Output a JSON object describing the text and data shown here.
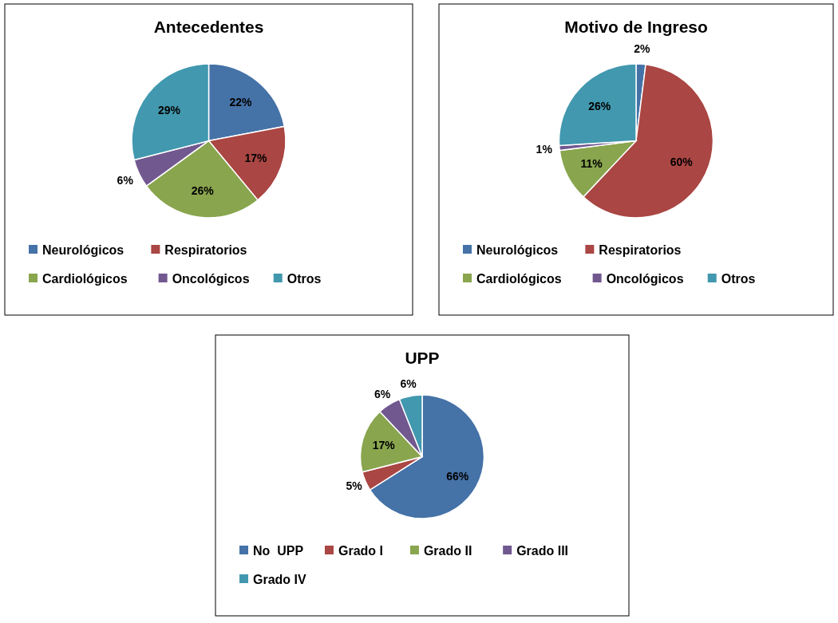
{
  "chart_data": [
    {
      "type": "pie",
      "title": "Antecedentes",
      "categories": [
        "Neurológicos",
        "Respiratorios",
        "Cardiológicos",
        "Oncológicos",
        "Otros"
      ],
      "values": [
        22,
        17,
        26,
        6,
        29
      ],
      "colors": [
        "#4572a7",
        "#aa4643",
        "#89a54e",
        "#71588f",
        "#4198af"
      ],
      "value_labels": [
        "22%",
        "17%",
        "26%",
        "6%",
        "29%"
      ],
      "legend": "bottom"
    },
    {
      "type": "pie",
      "title": "Motivo de Ingreso",
      "categories": [
        "Neurológicos",
        "Respiratorios",
        "Cardiológicos",
        "Oncológicos",
        "Otros"
      ],
      "values": [
        2,
        60,
        11,
        1,
        26
      ],
      "colors": [
        "#4572a7",
        "#aa4643",
        "#89a54e",
        "#71588f",
        "#4198af"
      ],
      "value_labels": [
        "2%",
        "60%",
        "11%",
        "1%",
        "26%"
      ],
      "legend": "bottom"
    },
    {
      "type": "pie",
      "title": "UPP",
      "categories": [
        "No  UPP",
        "Grado I",
        "Grado II",
        "Grado III",
        "Grado IV"
      ],
      "values": [
        66,
        5,
        17,
        6,
        6
      ],
      "colors": [
        "#4572a7",
        "#aa4643",
        "#89a54e",
        "#71588f",
        "#4198af"
      ],
      "value_labels": [
        "66%",
        "5%",
        "17%",
        "6%",
        "6%"
      ],
      "legend": "bottom"
    }
  ]
}
